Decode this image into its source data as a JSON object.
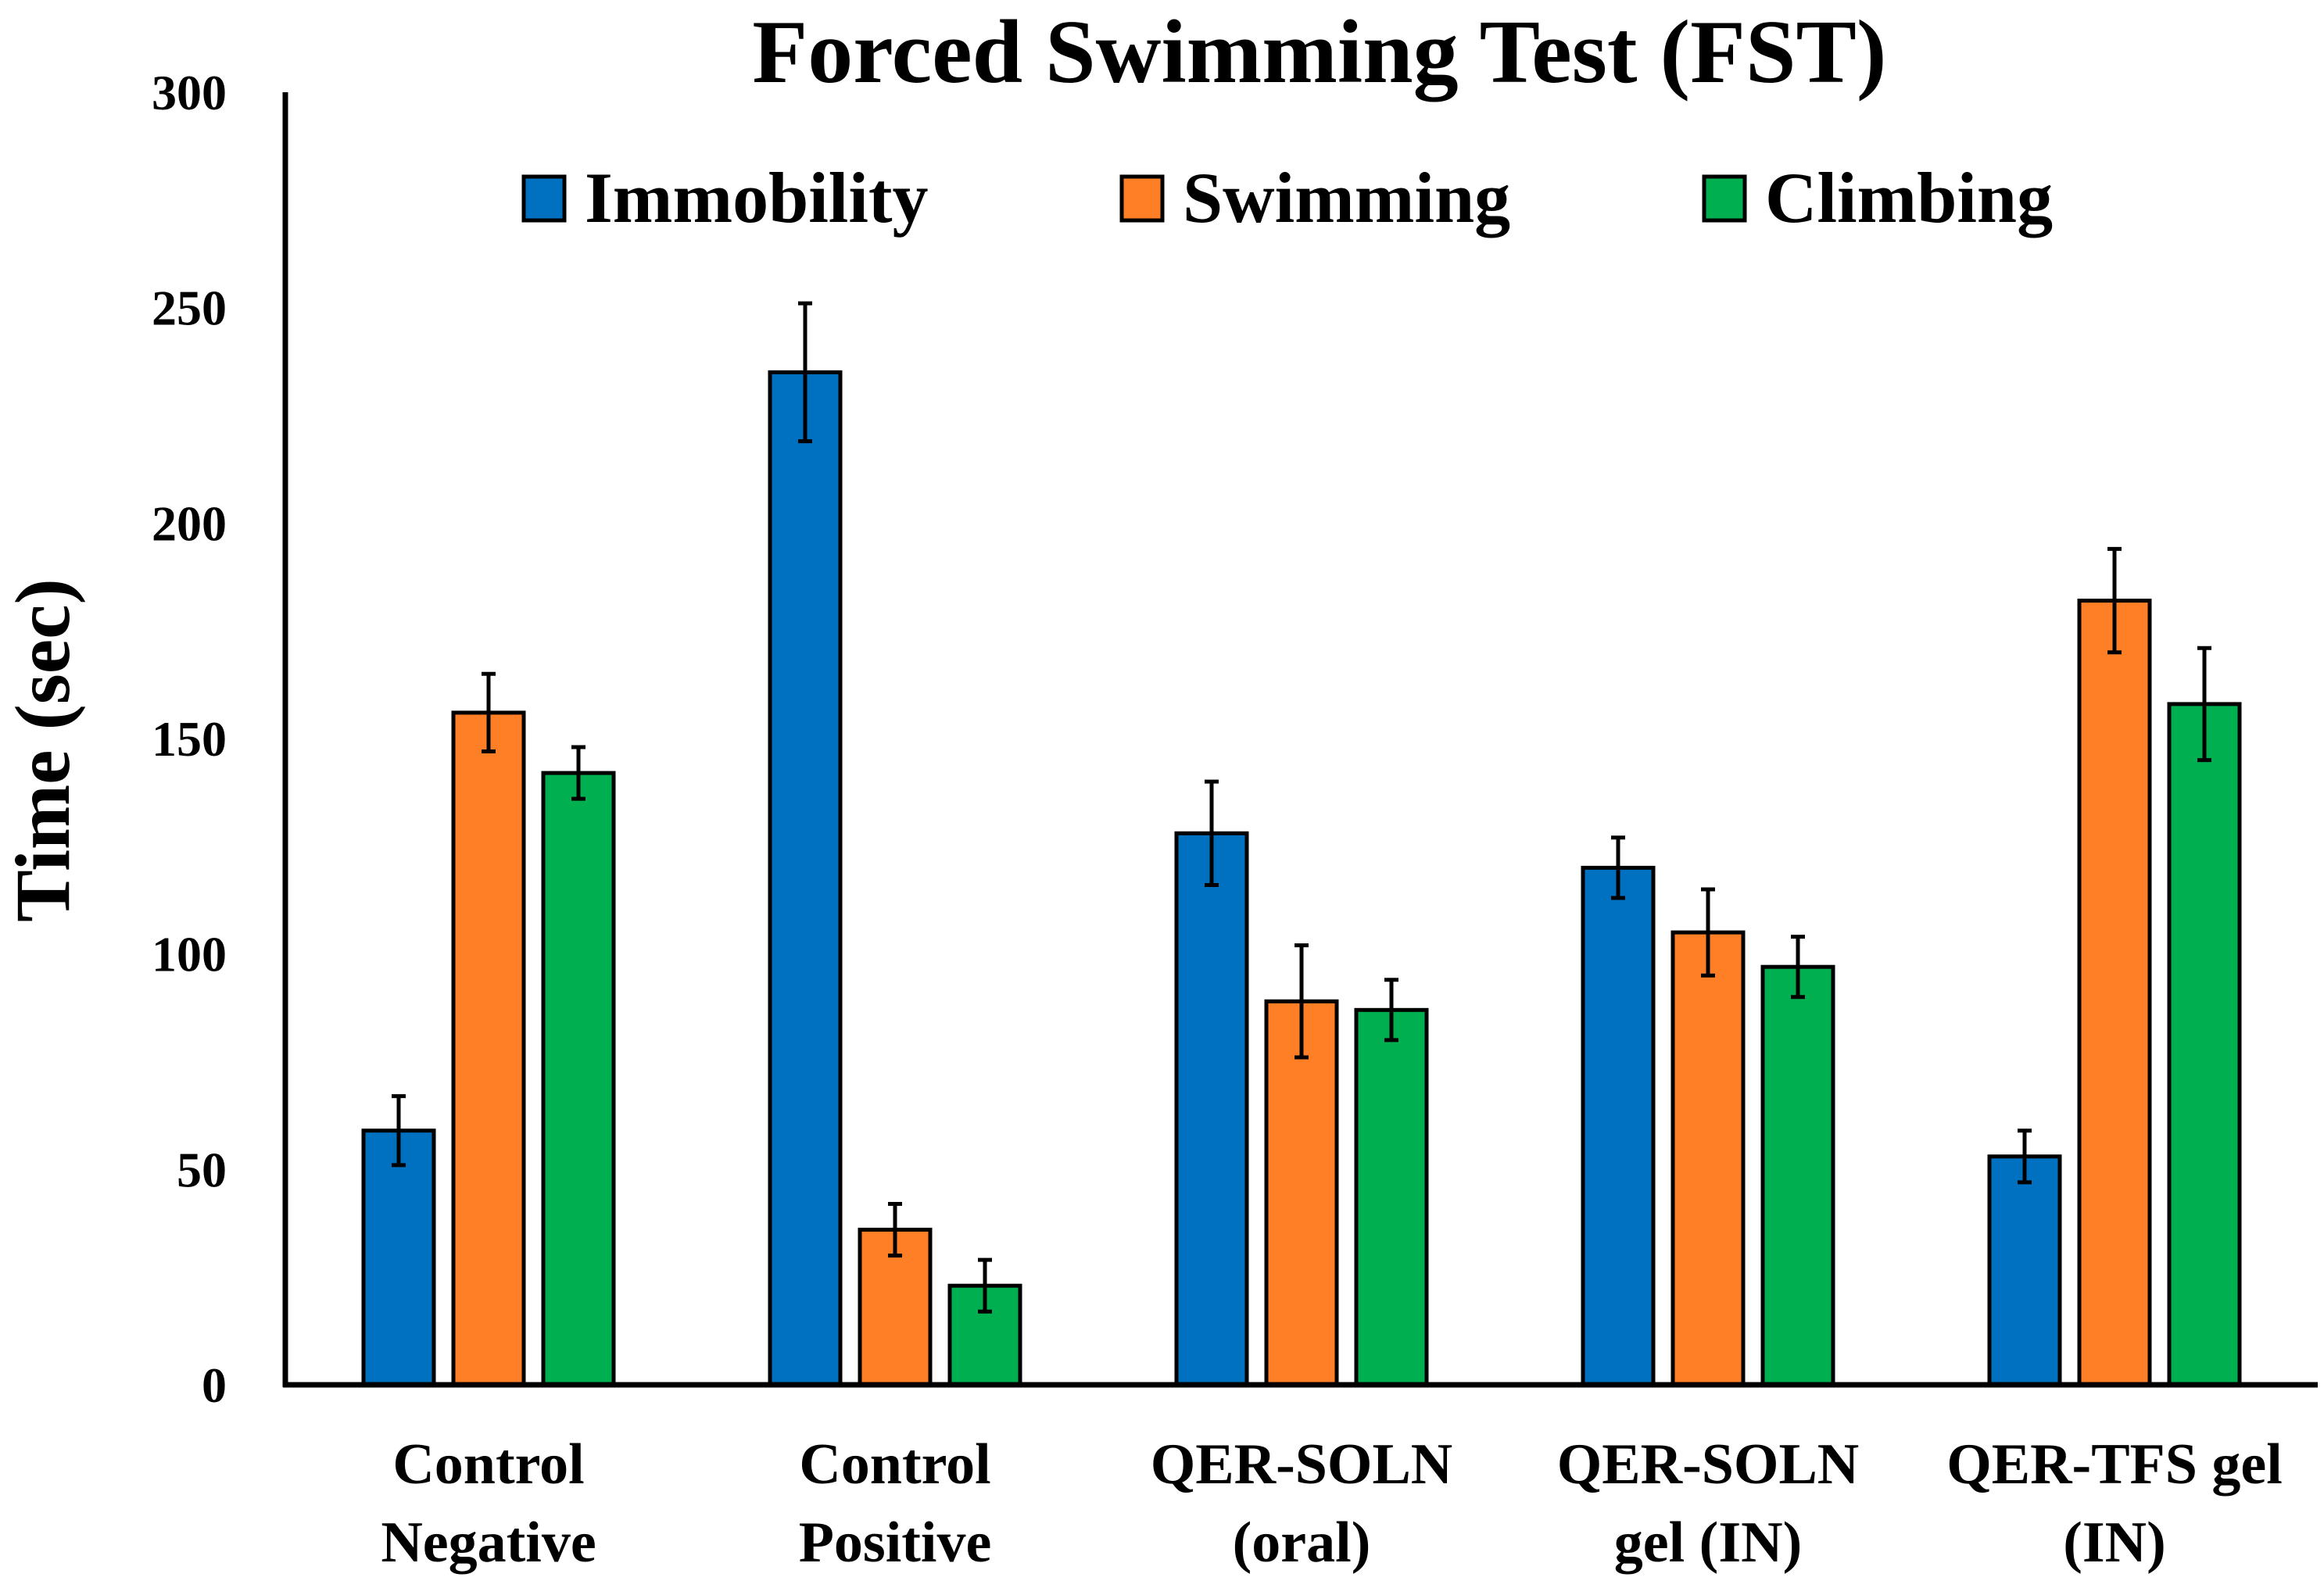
{
  "chart_data": {
    "type": "bar",
    "title": "Forced Swimming Test (FST)",
    "xlabel": "",
    "ylabel": "Time (sec)",
    "ylim": [
      0,
      300
    ],
    "yticks": [
      0,
      50,
      100,
      150,
      200,
      250,
      300
    ],
    "grid": false,
    "legend_position": "top",
    "categories": [
      [
        "Control",
        "Negative"
      ],
      [
        "Control",
        "Positive"
      ],
      [
        "QER-SOLN",
        "(oral)"
      ],
      [
        "QER-SOLN",
        "gel (IN)"
      ],
      [
        "QER-TFS gel",
        "(IN)"
      ]
    ],
    "series": [
      {
        "name": "Immobility",
        "color": "#0070c0",
        "values": [
          59,
          235,
          128,
          120,
          53
        ],
        "errors": [
          8,
          16,
          12,
          7,
          6
        ]
      },
      {
        "name": "Swimming",
        "color": "#ff7f27",
        "values": [
          156,
          36,
          89,
          105,
          182
        ],
        "errors": [
          9,
          6,
          13,
          10,
          12
        ]
      },
      {
        "name": "Climbing",
        "color": "#00b050",
        "values": [
          142,
          23,
          87,
          97,
          158
        ],
        "errors": [
          6,
          6,
          7,
          7,
          13
        ]
      }
    ]
  }
}
